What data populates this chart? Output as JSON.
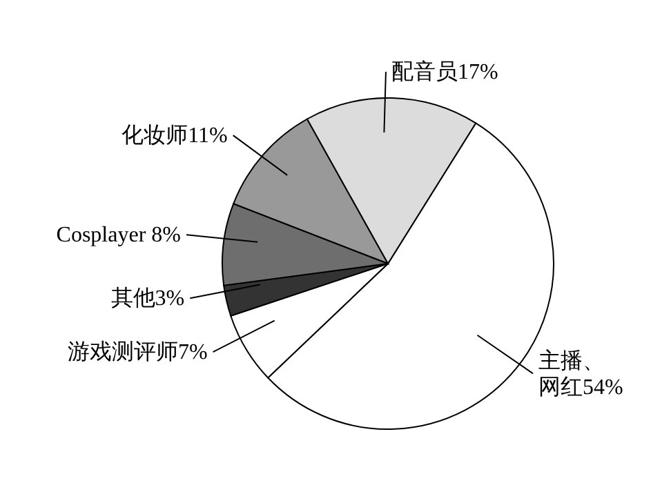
{
  "chart_data": {
    "type": "pie",
    "categories": [
      "主播、网红",
      "游戏测评师",
      "其他",
      "Cosplayer",
      "化妆师",
      "配音员"
    ],
    "values": [
      54,
      7,
      3,
      8,
      11,
      17
    ],
    "colors": [
      "#ffffff",
      "#ffffff",
      "#333333",
      "#6e6e6e",
      "#999999",
      "#dcdcdc"
    ],
    "value_labels": [
      "54%",
      "7%",
      "3%",
      "8%",
      "11%",
      "17%"
    ],
    "legend": false
  }
}
